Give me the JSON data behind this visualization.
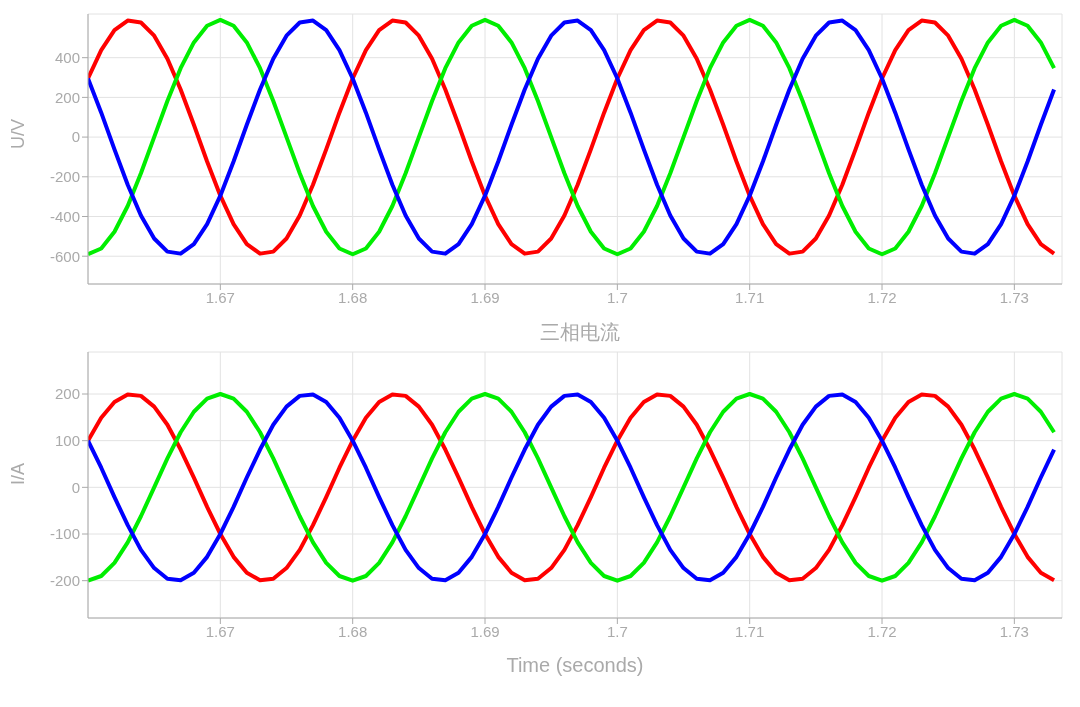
{
  "chart_data": [
    {
      "type": "line",
      "ylabel": "U/V",
      "grid": true,
      "x": [
        1.66,
        1.661,
        1.662,
        1.663,
        1.664,
        1.665,
        1.666,
        1.667,
        1.668,
        1.669,
        1.67,
        1.671,
        1.672,
        1.673,
        1.674,
        1.675,
        1.676,
        1.677,
        1.678,
        1.679,
        1.68,
        1.681,
        1.682,
        1.683,
        1.684,
        1.685,
        1.686,
        1.687,
        1.688,
        1.689,
        1.69,
        1.691,
        1.692,
        1.693,
        1.694,
        1.695,
        1.696,
        1.697,
        1.698,
        1.699,
        1.7,
        1.701,
        1.702,
        1.703,
        1.704,
        1.705,
        1.706,
        1.707,
        1.708,
        1.709,
        1.71,
        1.711,
        1.712,
        1.713,
        1.714,
        1.715,
        1.716,
        1.717,
        1.718,
        1.719,
        1.72,
        1.721,
        1.722,
        1.723,
        1.724,
        1.725,
        1.726,
        1.727,
        1.728,
        1.729,
        1.73,
        1.731,
        1.732,
        1.733
      ],
      "xlim": [
        1.66,
        1.7336
      ],
      "xticks": [
        1.67,
        1.68,
        1.69,
        1.7,
        1.71,
        1.72,
        1.73
      ],
      "ylim": [
        -740,
        620
      ],
      "yticks": [
        -600,
        -400,
        -200,
        0,
        200,
        400
      ],
      "series": [
        {
          "color": "#ff0000",
          "values": [
            295,
            438,
            539,
            587,
            577,
            511,
            395,
            240,
            62,
            -123,
            -295,
            -438,
            -539,
            -587,
            -577,
            -511,
            -395,
            -240,
            -62,
            123,
            295,
            438,
            539,
            587,
            577,
            511,
            395,
            240,
            62,
            -123,
            -295,
            -438,
            -539,
            -587,
            -577,
            -511,
            -395,
            -240,
            -62,
            123,
            295,
            438,
            539,
            587,
            577,
            511,
            395,
            240,
            62,
            -123,
            -295,
            -438,
            -539,
            -587,
            -577,
            -511,
            -395,
            -240,
            -62,
            123,
            295,
            438,
            539,
            587,
            577,
            511,
            395,
            240,
            62,
            -123,
            -295,
            -438,
            -539,
            -587
          ]
        },
        {
          "color": "#00ee00",
          "values": [
            -590,
            -561,
            -477,
            -347,
            -182,
            0,
            182,
            347,
            477,
            561,
            590,
            561,
            477,
            347,
            182,
            0,
            -182,
            -347,
            -477,
            -561,
            -590,
            -561,
            -477,
            -347,
            -182,
            0,
            182,
            347,
            477,
            561,
            590,
            561,
            477,
            347,
            182,
            0,
            -182,
            -347,
            -477,
            -561,
            -590,
            -561,
            -477,
            -347,
            -182,
            0,
            182,
            347,
            477,
            561,
            590,
            561,
            477,
            347,
            182,
            0,
            -182,
            -347,
            -477,
            -561,
            -590,
            -561,
            -477,
            -347,
            -182,
            0,
            182,
            347,
            477,
            561,
            590,
            561,
            477,
            347
          ]
        },
        {
          "color": "#0000ff",
          "values": [
            295,
            123,
            -62,
            -240,
            -395,
            -511,
            -577,
            -587,
            -539,
            -438,
            -295,
            -123,
            62,
            240,
            395,
            511,
            577,
            587,
            539,
            438,
            295,
            123,
            -62,
            -240,
            -395,
            -511,
            -577,
            -587,
            -539,
            -438,
            -295,
            -123,
            62,
            240,
            395,
            511,
            577,
            587,
            539,
            438,
            295,
            123,
            -62,
            -240,
            -395,
            -511,
            -577,
            -587,
            -539,
            -438,
            -295,
            -123,
            62,
            240,
            395,
            511,
            577,
            587,
            539,
            438,
            295,
            123,
            -62,
            -240,
            -395,
            -511,
            -577,
            -587,
            -539,
            -438,
            -295,
            -123,
            62,
            240
          ]
        }
      ]
    },
    {
      "type": "line",
      "title": "三相电流",
      "ylabel": "I/A",
      "xlabel": "Time (seconds)",
      "grid": true,
      "x": [
        1.66,
        1.661,
        1.662,
        1.663,
        1.664,
        1.665,
        1.666,
        1.667,
        1.668,
        1.669,
        1.67,
        1.671,
        1.672,
        1.673,
        1.674,
        1.675,
        1.676,
        1.677,
        1.678,
        1.679,
        1.68,
        1.681,
        1.682,
        1.683,
        1.684,
        1.685,
        1.686,
        1.687,
        1.688,
        1.689,
        1.69,
        1.691,
        1.692,
        1.693,
        1.694,
        1.695,
        1.696,
        1.697,
        1.698,
        1.699,
        1.7,
        1.701,
        1.702,
        1.703,
        1.704,
        1.705,
        1.706,
        1.707,
        1.708,
        1.709,
        1.71,
        1.711,
        1.712,
        1.713,
        1.714,
        1.715,
        1.716,
        1.717,
        1.718,
        1.719,
        1.72,
        1.721,
        1.722,
        1.723,
        1.724,
        1.725,
        1.726,
        1.727,
        1.728,
        1.729,
        1.73,
        1.731,
        1.732,
        1.733
      ],
      "xlim": [
        1.66,
        1.7336
      ],
      "xticks": [
        1.67,
        1.68,
        1.69,
        1.7,
        1.71,
        1.72,
        1.73
      ],
      "ylim": [
        -280,
        290
      ],
      "yticks": [
        -200,
        -100,
        0,
        100,
        200
      ],
      "series": [
        {
          "color": "#ff0000",
          "values": [
            100,
            149,
            183,
            199,
            196,
            173,
            134,
            81,
            21,
            -42,
            -100,
            -149,
            -183,
            -199,
            -196,
            -173,
            -134,
            -81,
            -21,
            42,
            100,
            149,
            183,
            199,
            196,
            173,
            134,
            81,
            21,
            -42,
            -100,
            -149,
            -183,
            -199,
            -196,
            -173,
            -134,
            -81,
            -21,
            42,
            100,
            149,
            183,
            199,
            196,
            173,
            134,
            81,
            21,
            -42,
            -100,
            -149,
            -183,
            -199,
            -196,
            -173,
            -134,
            -81,
            -21,
            42,
            100,
            149,
            183,
            199,
            196,
            173,
            134,
            81,
            21,
            -42,
            -100,
            -149,
            -183,
            -199
          ]
        },
        {
          "color": "#00ee00",
          "values": [
            -200,
            -190,
            -162,
            -118,
            -62,
            0,
            62,
            118,
            162,
            190,
            200,
            190,
            162,
            118,
            62,
            0,
            -62,
            -118,
            -162,
            -190,
            -200,
            -190,
            -162,
            -118,
            -62,
            0,
            62,
            118,
            162,
            190,
            200,
            190,
            162,
            118,
            62,
            0,
            -62,
            -118,
            -162,
            -190,
            -200,
            -190,
            -162,
            -118,
            -62,
            0,
            62,
            118,
            162,
            190,
            200,
            190,
            162,
            118,
            62,
            0,
            -62,
            -118,
            -162,
            -190,
            -200,
            -190,
            -162,
            -118,
            -62,
            0,
            62,
            118,
            162,
            190,
            200,
            190,
            162,
            118
          ]
        },
        {
          "color": "#0000ff",
          "values": [
            100,
            42,
            -21,
            -81,
            -134,
            -173,
            -196,
            -199,
            -183,
            -149,
            -100,
            -42,
            21,
            81,
            134,
            173,
            196,
            199,
            183,
            149,
            100,
            42,
            -21,
            -81,
            -134,
            -173,
            -196,
            -199,
            -183,
            -149,
            -100,
            -42,
            21,
            81,
            134,
            173,
            196,
            199,
            183,
            149,
            100,
            42,
            -21,
            -81,
            -134,
            -173,
            -196,
            -199,
            -183,
            -149,
            -100,
            -42,
            21,
            81,
            134,
            173,
            196,
            199,
            183,
            149,
            100,
            42,
            -21,
            -81,
            -134,
            -173,
            -196,
            -199,
            -183,
            -149,
            -100,
            -42,
            21,
            81
          ]
        }
      ]
    }
  ]
}
